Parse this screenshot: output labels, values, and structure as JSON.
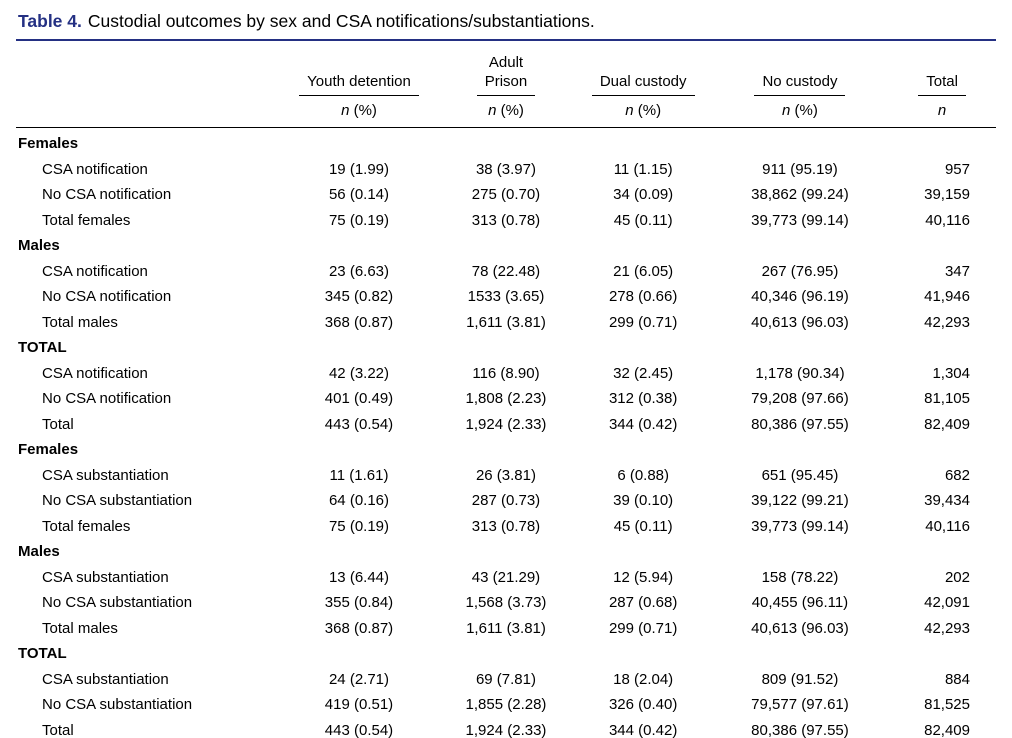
{
  "colors": {
    "accent": "#243083",
    "text": "#000000",
    "background": "#ffffff",
    "rule": "#000000"
  },
  "title": {
    "label": "Table 4.",
    "text": "Custodial outcomes by sex and CSA notifications/substantiations."
  },
  "table": {
    "columns": [
      {
        "header_lines": [
          "Youth detention"
        ],
        "sub": "n (%)"
      },
      {
        "header_lines": [
          "Adult",
          "Prison"
        ],
        "sub": "n (%)"
      },
      {
        "header_lines": [
          "Dual custody"
        ],
        "sub": "n (%)"
      },
      {
        "header_lines": [
          "No custody"
        ],
        "sub": "n (%)"
      },
      {
        "header_lines": [
          "Total"
        ],
        "sub": "n"
      }
    ],
    "rows": [
      {
        "type": "section",
        "label": "Females"
      },
      {
        "type": "data",
        "label": "CSA notification",
        "values": [
          "19 (1.99)",
          "38 (3.97)",
          "11 (1.15)",
          "911 (95.19)",
          "957"
        ]
      },
      {
        "type": "data",
        "label": "No CSA notification",
        "values": [
          "56 (0.14)",
          "275 (0.70)",
          "34 (0.09)",
          "38,862 (99.24)",
          "39,159"
        ]
      },
      {
        "type": "data",
        "label": "Total females",
        "values": [
          "75 (0.19)",
          "313 (0.78)",
          "45 (0.11)",
          "39,773 (99.14)",
          "40,116"
        ]
      },
      {
        "type": "section",
        "label": "Males"
      },
      {
        "type": "data",
        "label": "CSA notification",
        "values": [
          "23 (6.63)",
          "78 (22.48)",
          "21 (6.05)",
          "267 (76.95)",
          "347"
        ]
      },
      {
        "type": "data",
        "label": "No CSA notification",
        "values": [
          "345 (0.82)",
          "1533 (3.65)",
          "278 (0.66)",
          "40,346 (96.19)",
          "41,946"
        ]
      },
      {
        "type": "data",
        "label": "Total males",
        "values": [
          "368 (0.87)",
          "1,611 (3.81)",
          "299 (0.71)",
          "40,613 (96.03)",
          "42,293"
        ]
      },
      {
        "type": "section",
        "label": "TOTAL"
      },
      {
        "type": "data",
        "label": "CSA notification",
        "values": [
          "42 (3.22)",
          "116 (8.90)",
          "32 (2.45)",
          "1,178 (90.34)",
          "1,304"
        ]
      },
      {
        "type": "data",
        "label": "No CSA notification",
        "values": [
          "401 (0.49)",
          "1,808 (2.23)",
          "312 (0.38)",
          "79,208 (97.66)",
          "81,105"
        ]
      },
      {
        "type": "data",
        "label": "Total",
        "values": [
          "443 (0.54)",
          "1,924 (2.33)",
          "344 (0.42)",
          "80,386 (97.55)",
          "82,409"
        ]
      },
      {
        "type": "section",
        "label": "Females"
      },
      {
        "type": "data",
        "label": "CSA substantiation",
        "values": [
          "11 (1.61)",
          "26 (3.81)",
          "6 (0.88)",
          "651 (95.45)",
          "682"
        ]
      },
      {
        "type": "data",
        "label": "No CSA substantiation",
        "values": [
          "64 (0.16)",
          "287 (0.73)",
          "39 (0.10)",
          "39,122 (99.21)",
          "39,434"
        ]
      },
      {
        "type": "data",
        "label": "Total females",
        "values": [
          "75 (0.19)",
          "313 (0.78)",
          "45 (0.11)",
          "39,773 (99.14)",
          "40,116"
        ]
      },
      {
        "type": "section",
        "label": "Males"
      },
      {
        "type": "data",
        "label": "CSA substantiation",
        "values": [
          "13 (6.44)",
          "43 (21.29)",
          "12 (5.94)",
          "158 (78.22)",
          "202"
        ]
      },
      {
        "type": "data",
        "label": "No CSA substantiation",
        "values": [
          "355 (0.84)",
          "1,568 (3.73)",
          "287 (0.68)",
          "40,455 (96.11)",
          "42,091"
        ]
      },
      {
        "type": "data",
        "label": "Total males",
        "values": [
          "368 (0.87)",
          "1,611 (3.81)",
          "299 (0.71)",
          "40,613 (96.03)",
          "42,293"
        ]
      },
      {
        "type": "section",
        "label": "TOTAL"
      },
      {
        "type": "data",
        "label": "CSA substantiation",
        "values": [
          "24 (2.71)",
          "69 (7.81)",
          "18 (2.04)",
          "809 (91.52)",
          "884"
        ]
      },
      {
        "type": "data",
        "label": "No CSA substantiation",
        "values": [
          "419 (0.51)",
          "1,855 (2.28)",
          "326 (0.40)",
          "79,577 (97.61)",
          "81,525"
        ]
      },
      {
        "type": "data",
        "label": "Total",
        "values": [
          "443 (0.54)",
          "1,924 (2.33)",
          "344 (0.42)",
          "80,386 (97.55)",
          "82,409"
        ]
      }
    ]
  }
}
